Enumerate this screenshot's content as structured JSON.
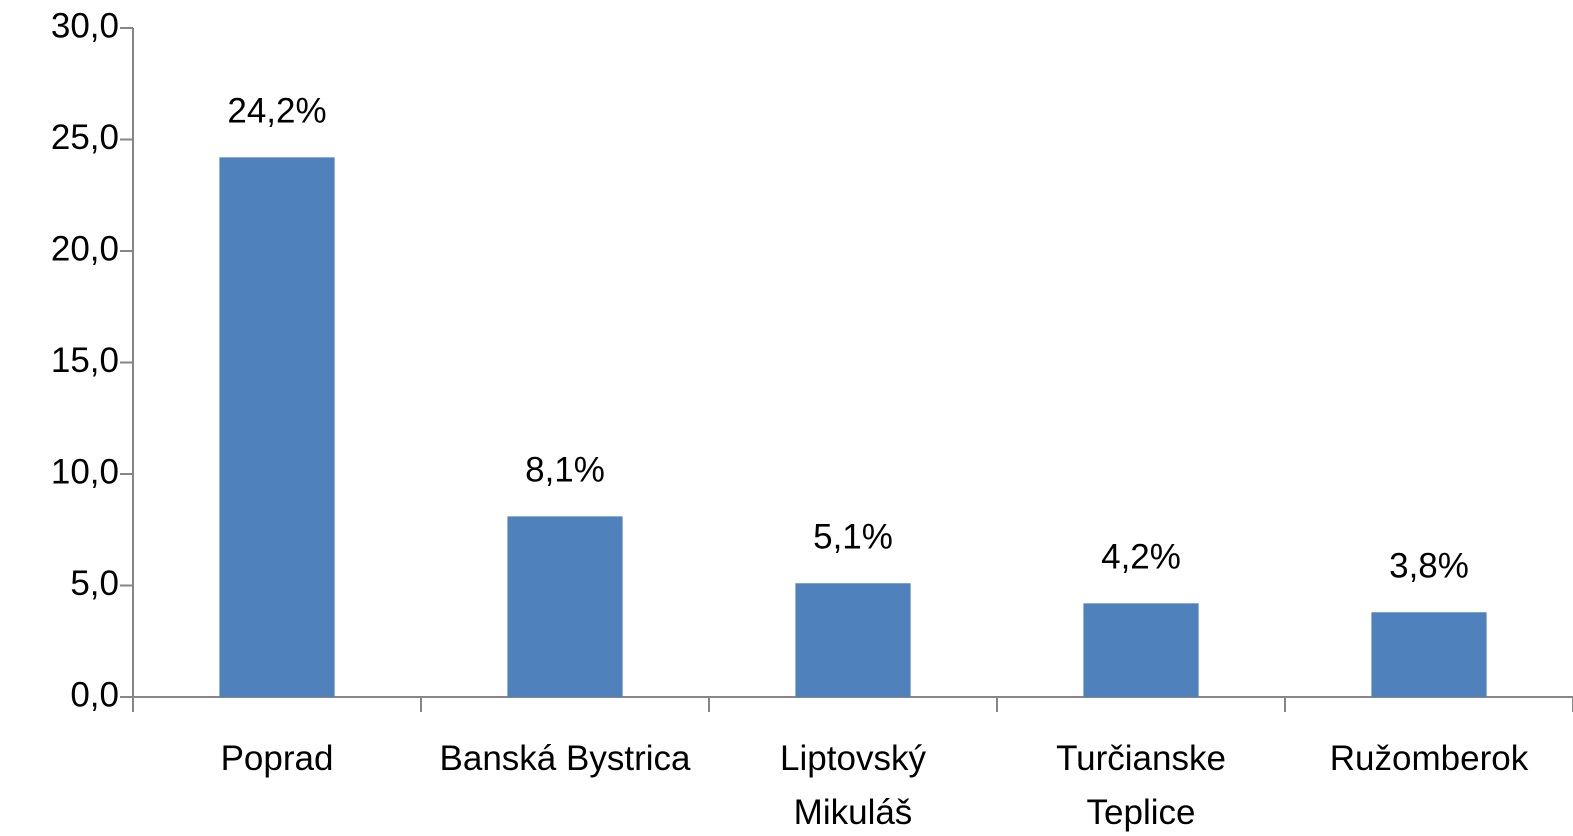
{
  "chart_data": {
    "type": "bar",
    "categories": [
      "Poprad",
      "Banská Bystrica",
      "Liptovský\nMikuláš",
      "Turčianske\nTeplice",
      "Ružomberok"
    ],
    "values": [
      24.2,
      8.1,
      5.1,
      4.2,
      3.8
    ],
    "value_labels": [
      "24,2%",
      "8,1%",
      "5,1%",
      "4,2%",
      "3,8%"
    ],
    "color": "#4f81bd",
    "ylim": [
      0,
      30
    ],
    "yticks": [
      {
        "value": 0,
        "label": "0,0"
      },
      {
        "value": 5,
        "label": "5,0"
      },
      {
        "value": 10,
        "label": "10,0"
      },
      {
        "value": 15,
        "label": "15,0"
      },
      {
        "value": 20,
        "label": "20,0"
      },
      {
        "value": 25,
        "label": "25,0"
      },
      {
        "value": 30,
        "label": "30,0"
      }
    ],
    "grid": false
  }
}
